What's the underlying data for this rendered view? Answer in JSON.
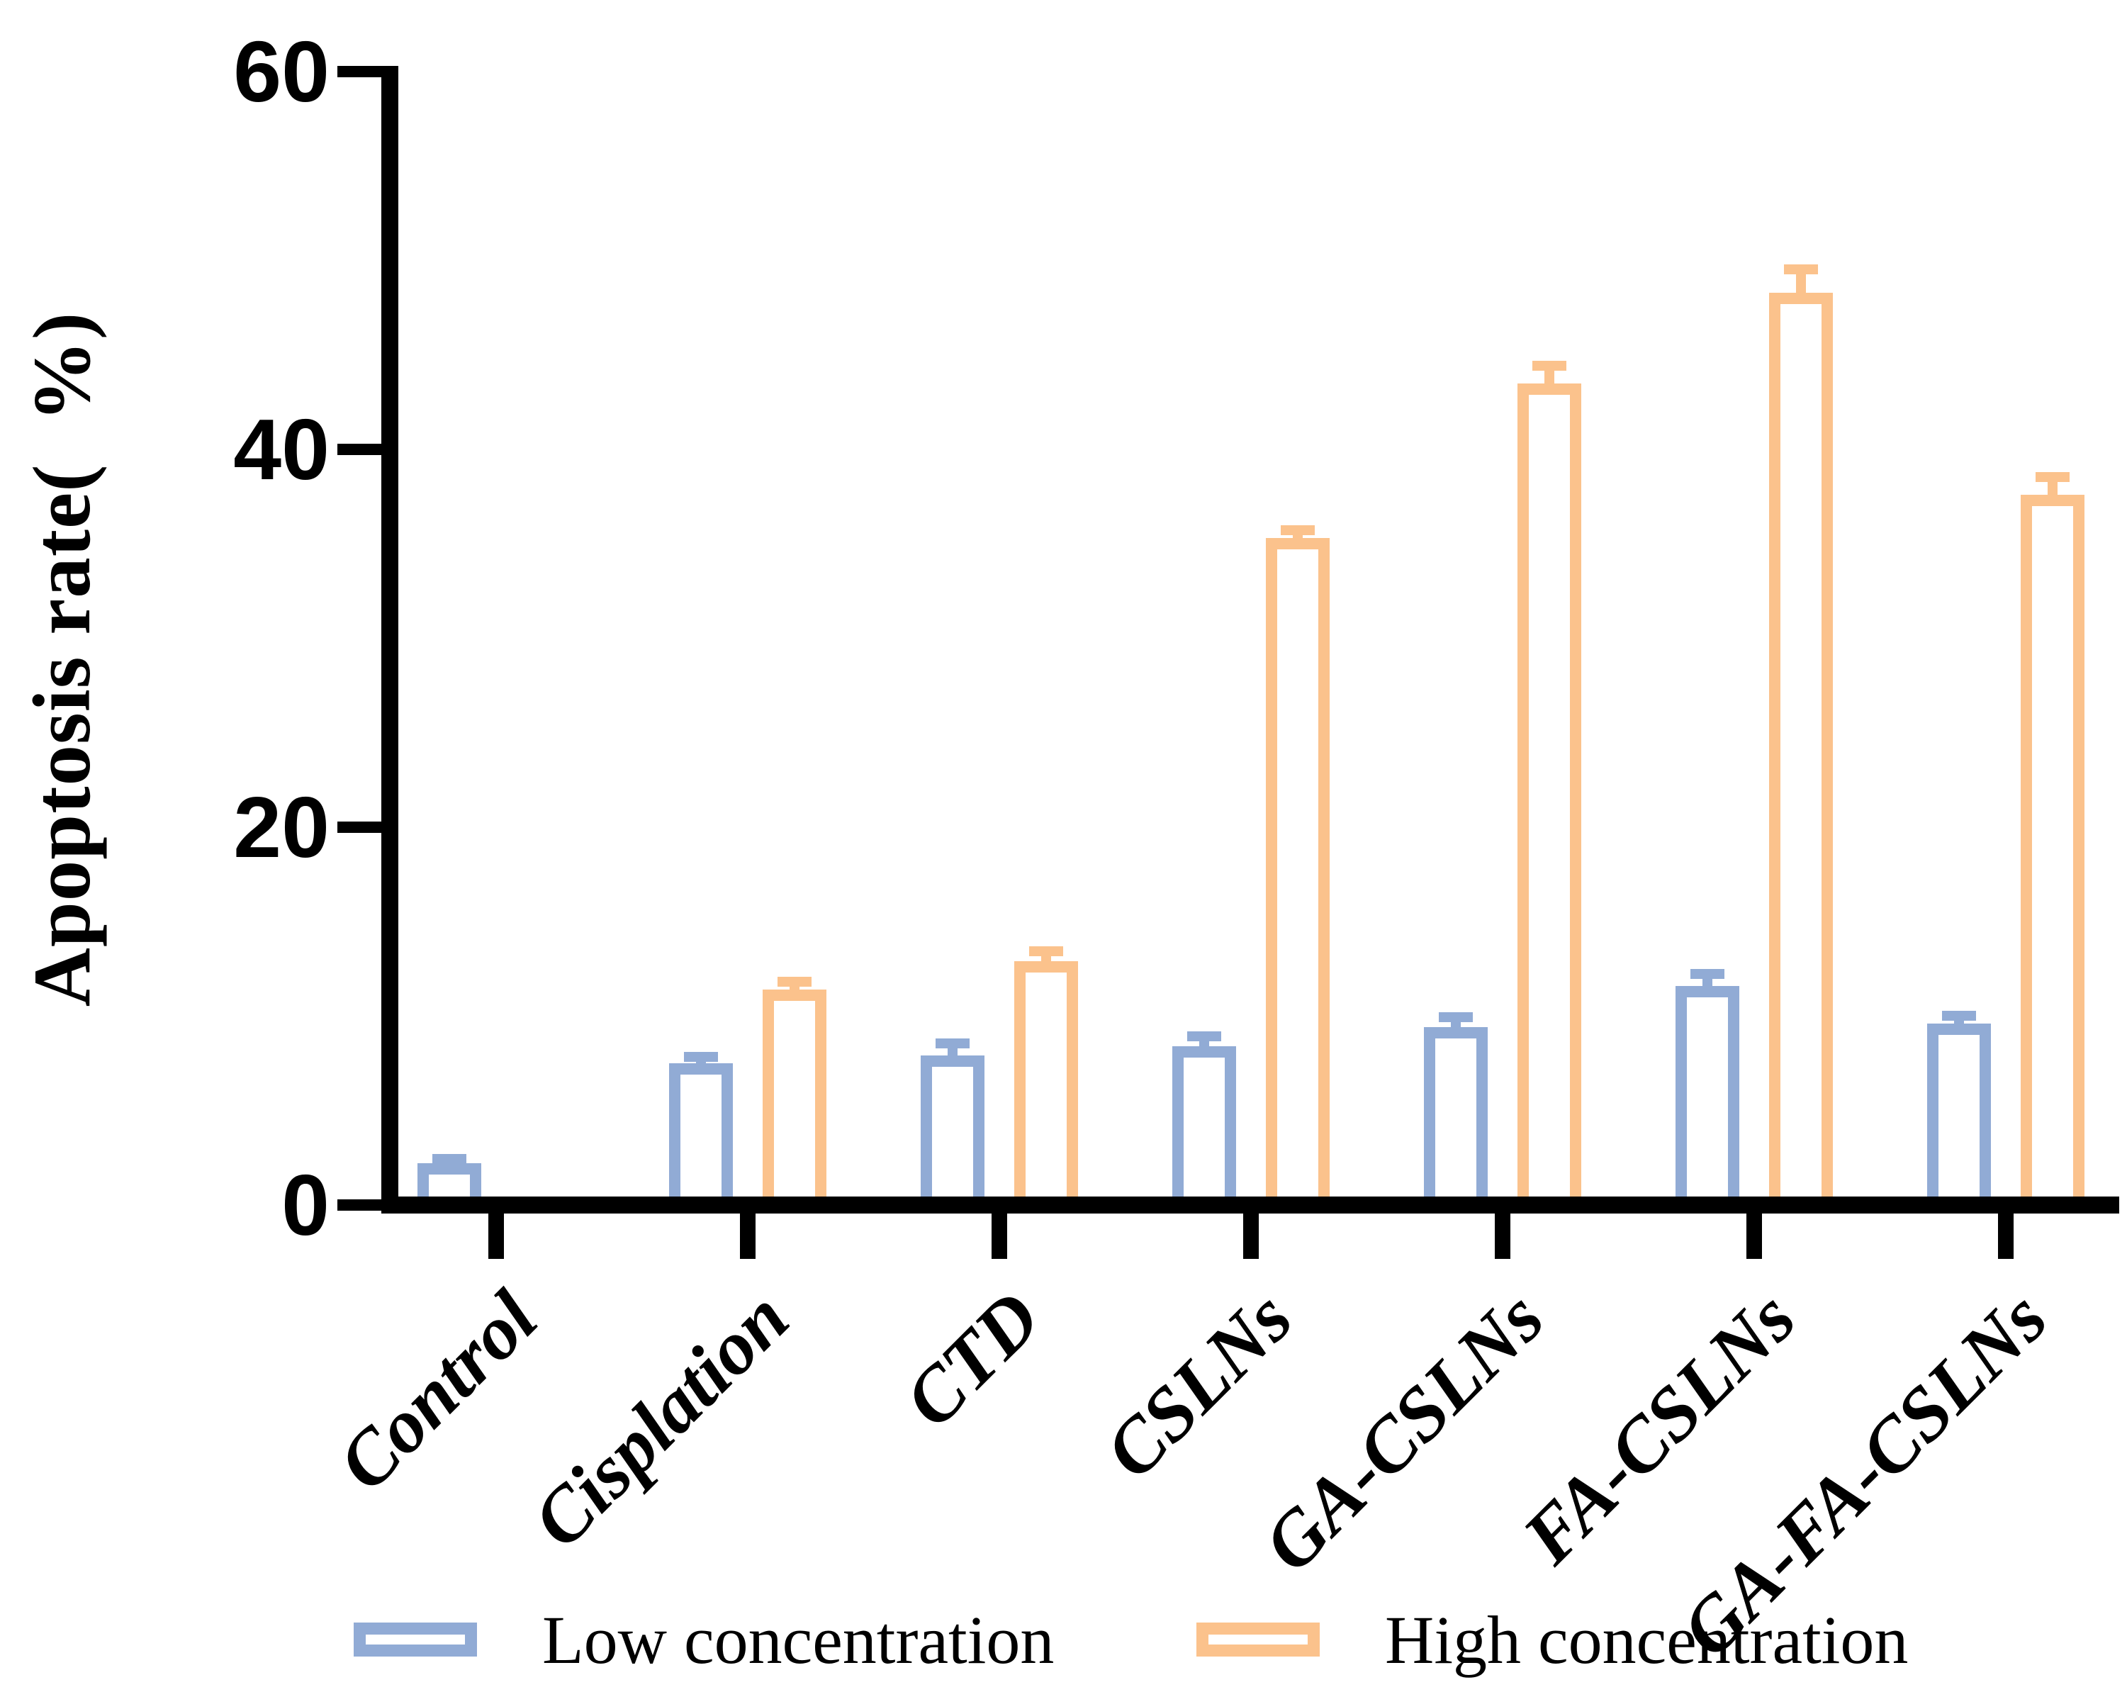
{
  "chart_data": {
    "type": "bar",
    "title": "",
    "ylabel": "Apoptosis rate(  %)",
    "xlabel": "",
    "categories": [
      "Control",
      "Cisplation",
      "CTD",
      "CSLNs",
      "GA-CSLNs",
      "FA-CSLNs",
      "GA-FA-CSLNs"
    ],
    "series": [
      {
        "name": "Low concentration",
        "color": "#91ABD5",
        "values": [
          2.2,
          7.5,
          7.9,
          8.4,
          9.4,
          11.6,
          9.6
        ],
        "errors": [
          0.5,
          0.6,
          0.9,
          0.8,
          0.8,
          0.9,
          0.7
        ]
      },
      {
        "name": "High concentration",
        "color": "#FBC28C",
        "values": [
          null,
          11.4,
          12.9,
          35.3,
          43.5,
          48.3,
          37.6
        ],
        "errors": [
          null,
          0.7,
          0.8,
          0.7,
          1.2,
          1.5,
          1.2
        ]
      }
    ],
    "ylim": [
      0,
      60
    ],
    "yticks": [
      0,
      20,
      40,
      60
    ],
    "grid": false,
    "legend_position": "bottom",
    "bar_style": "hollow outline bars, white fill",
    "error_bars": "sd caps, same color as bar outline",
    "axis_color": "#000000",
    "background_color": "#FFFFFF"
  }
}
